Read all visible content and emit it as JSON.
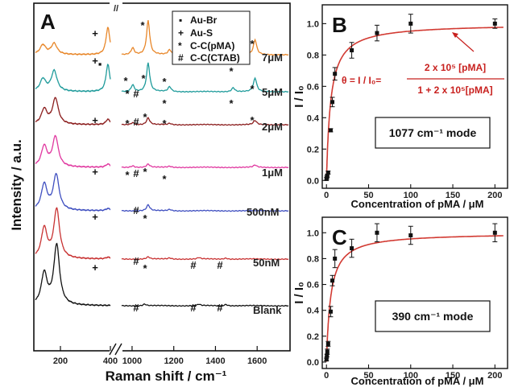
{
  "panel_A": {
    "label": "A",
    "ylabel": "Intensity / a.u.",
    "xlabel": "Raman shift / cm⁻¹",
    "x_ticks_left": [
      "200",
      "400"
    ],
    "x_ticks_right": [
      "1000",
      "1200",
      "1400",
      "1600"
    ],
    "axis_break": "//",
    "legend": [
      {
        "symbol": "▪",
        "text": "Au-Br"
      },
      {
        "symbol": "+",
        "text": "Au-S"
      },
      {
        "symbol": "*",
        "text": "C-C(pMA)"
      },
      {
        "symbol": "#",
        "text": "C-C(CTAB)"
      }
    ],
    "spectra_labels": [
      "7μM",
      "5μM",
      "2μM",
      "1μM",
      "500nM",
      "50nM",
      "Blank"
    ],
    "spectra_colors": [
      "#e8872a",
      "#1f9b9b",
      "#8b1d1d",
      "#e0379f",
      "#3f4fc0",
      "#c83232",
      "#111111"
    ]
  },
  "panel_B": {
    "label": "B",
    "mode": "1077 cm⁻¹ mode",
    "ylabel": "I / I₀",
    "xlabel": "Concentration of pMA / μM",
    "x_ticks": [
      "0",
      "50",
      "100",
      "150",
      "200"
    ],
    "y_ticks": [
      "0.0",
      "0.2",
      "0.4",
      "0.6",
      "0.8",
      "1.0"
    ],
    "equation_left": "θ = I / I₀=",
    "equation_num": "2 x 10⁵ [pMA]",
    "equation_den": "1 + 2 x 10⁵[pMA]"
  },
  "panel_C": {
    "label": "C",
    "mode": "390 cm⁻¹ mode",
    "ylabel": "I / I₀",
    "xlabel": "Concentration of pMA / μM",
    "x_ticks": [
      "0",
      "50",
      "100",
      "150",
      "200"
    ],
    "y_ticks": [
      "0.0",
      "0.2",
      "0.4",
      "0.6",
      "0.8",
      "1.0"
    ]
  },
  "chart_data": [
    {
      "type": "line",
      "title": "",
      "xlabel": "Raman shift / cm⁻¹",
      "ylabel": "Intensity / a.u.",
      "x_segments": [
        [
          100,
          400
        ],
        [
          950,
          1750
        ]
      ],
      "series": [
        {
          "name": "7μM",
          "peaks": [
            [
              130,
              0.35
            ],
            [
              175,
              0.4
            ],
            [
              390,
              1.0
            ],
            [
              1003,
              0.25
            ],
            [
              1077,
              1.25
            ],
            [
              1180,
              0.18
            ],
            [
              1485,
              0.2
            ],
            [
              1590,
              0.55
            ]
          ]
        },
        {
          "name": "5μM",
          "peaks": [
            [
              130,
              0.45
            ],
            [
              175,
              0.75
            ],
            [
              390,
              1.0
            ],
            [
              1003,
              0.25
            ],
            [
              1077,
              1.05
            ],
            [
              1180,
              0.18
            ],
            [
              1485,
              0.15
            ],
            [
              1590,
              0.5
            ]
          ]
        },
        {
          "name": "2μM",
          "peaks": [
            [
              135,
              0.55
            ],
            [
              180,
              0.95
            ],
            [
              390,
              0.2
            ],
            [
              1003,
              0.08
            ],
            [
              1077,
              0.25
            ],
            [
              1180,
              0.05
            ],
            [
              1590,
              0.15
            ]
          ]
        },
        {
          "name": "1μM",
          "peaks": [
            [
              135,
              0.75
            ],
            [
              180,
              1.1
            ],
            [
              390,
              0.12
            ],
            [
              1003,
              0.06
            ],
            [
              1077,
              0.12
            ],
            [
              1180,
              0.04
            ],
            [
              1590,
              0.08
            ]
          ]
        },
        {
          "name": "500nM",
          "peaks": [
            [
              135,
              0.95
            ],
            [
              183,
              1.3
            ],
            [
              390,
              0.08
            ],
            [
              1077,
              0.22
            ],
            [
              1180,
              0.05
            ]
          ]
        },
        {
          "name": "50nM",
          "peaks": [
            [
              135,
              1.1
            ],
            [
              185,
              1.8
            ],
            [
              390,
              0.06
            ],
            [
              1077,
              0.08
            ],
            [
              1180,
              0.04
            ],
            [
              1320,
              0.05
            ],
            [
              1450,
              0.04
            ]
          ]
        },
        {
          "name": "Blank",
          "peaks": [
            [
              135,
              1.15
            ],
            [
              185,
              2.2
            ],
            [
              1060,
              0.06
            ],
            [
              1320,
              0.05
            ],
            [
              1450,
              0.05
            ]
          ]
        }
      ]
    },
    {
      "type": "scatter",
      "title": "1077 cm⁻¹ mode",
      "xlabel": "Concentration of pMA / μM",
      "ylabel": "I / I₀",
      "xlim": [
        -5,
        215
      ],
      "ylim": [
        -0.05,
        1.12
      ],
      "points": [
        {
          "x": 0.05,
          "y": 0.01,
          "err": 0.01
        },
        {
          "x": 0.5,
          "y": 0.02,
          "err": 0.01
        },
        {
          "x": 1,
          "y": 0.03,
          "err": 0.01
        },
        {
          "x": 2,
          "y": 0.05,
          "err": 0.01
        },
        {
          "x": 5,
          "y": 0.32,
          "err": 0.01
        },
        {
          "x": 7,
          "y": 0.5,
          "err": 0.03
        },
        {
          "x": 10,
          "y": 0.68,
          "err": 0.04
        },
        {
          "x": 30,
          "y": 0.83,
          "err": 0.05
        },
        {
          "x": 60,
          "y": 0.94,
          "err": 0.05
        },
        {
          "x": 100,
          "y": 1.0,
          "err": 0.06
        },
        {
          "x": 200,
          "y": 1.0,
          "err": 0.03
        }
      ],
      "fit": {
        "model": "Langmuir",
        "K_per_uM": 0.2
      }
    },
    {
      "type": "scatter",
      "title": "390 cm⁻¹ mode",
      "xlabel": "Concentration of pMA / μM",
      "ylabel": "I / I₀",
      "xlim": [
        -5,
        215
      ],
      "ylim": [
        -0.05,
        1.12
      ],
      "points": [
        {
          "x": 0.05,
          "y": 0.02,
          "err": 0.01
        },
        {
          "x": 0.5,
          "y": 0.05,
          "err": 0.01
        },
        {
          "x": 1,
          "y": 0.08,
          "err": 0.02
        },
        {
          "x": 2,
          "y": 0.14,
          "err": 0.02
        },
        {
          "x": 5,
          "y": 0.39,
          "err": 0.04
        },
        {
          "x": 7,
          "y": 0.63,
          "err": 0.04
        },
        {
          "x": 10,
          "y": 0.8,
          "err": 0.07
        },
        {
          "x": 30,
          "y": 0.88,
          "err": 0.07
        },
        {
          "x": 60,
          "y": 1.0,
          "err": 0.07
        },
        {
          "x": 100,
          "y": 0.98,
          "err": 0.07
        },
        {
          "x": 200,
          "y": 1.0,
          "err": 0.07
        }
      ],
      "fit": {
        "model": "Langmuir",
        "K_per_uM": 0.2
      }
    }
  ]
}
